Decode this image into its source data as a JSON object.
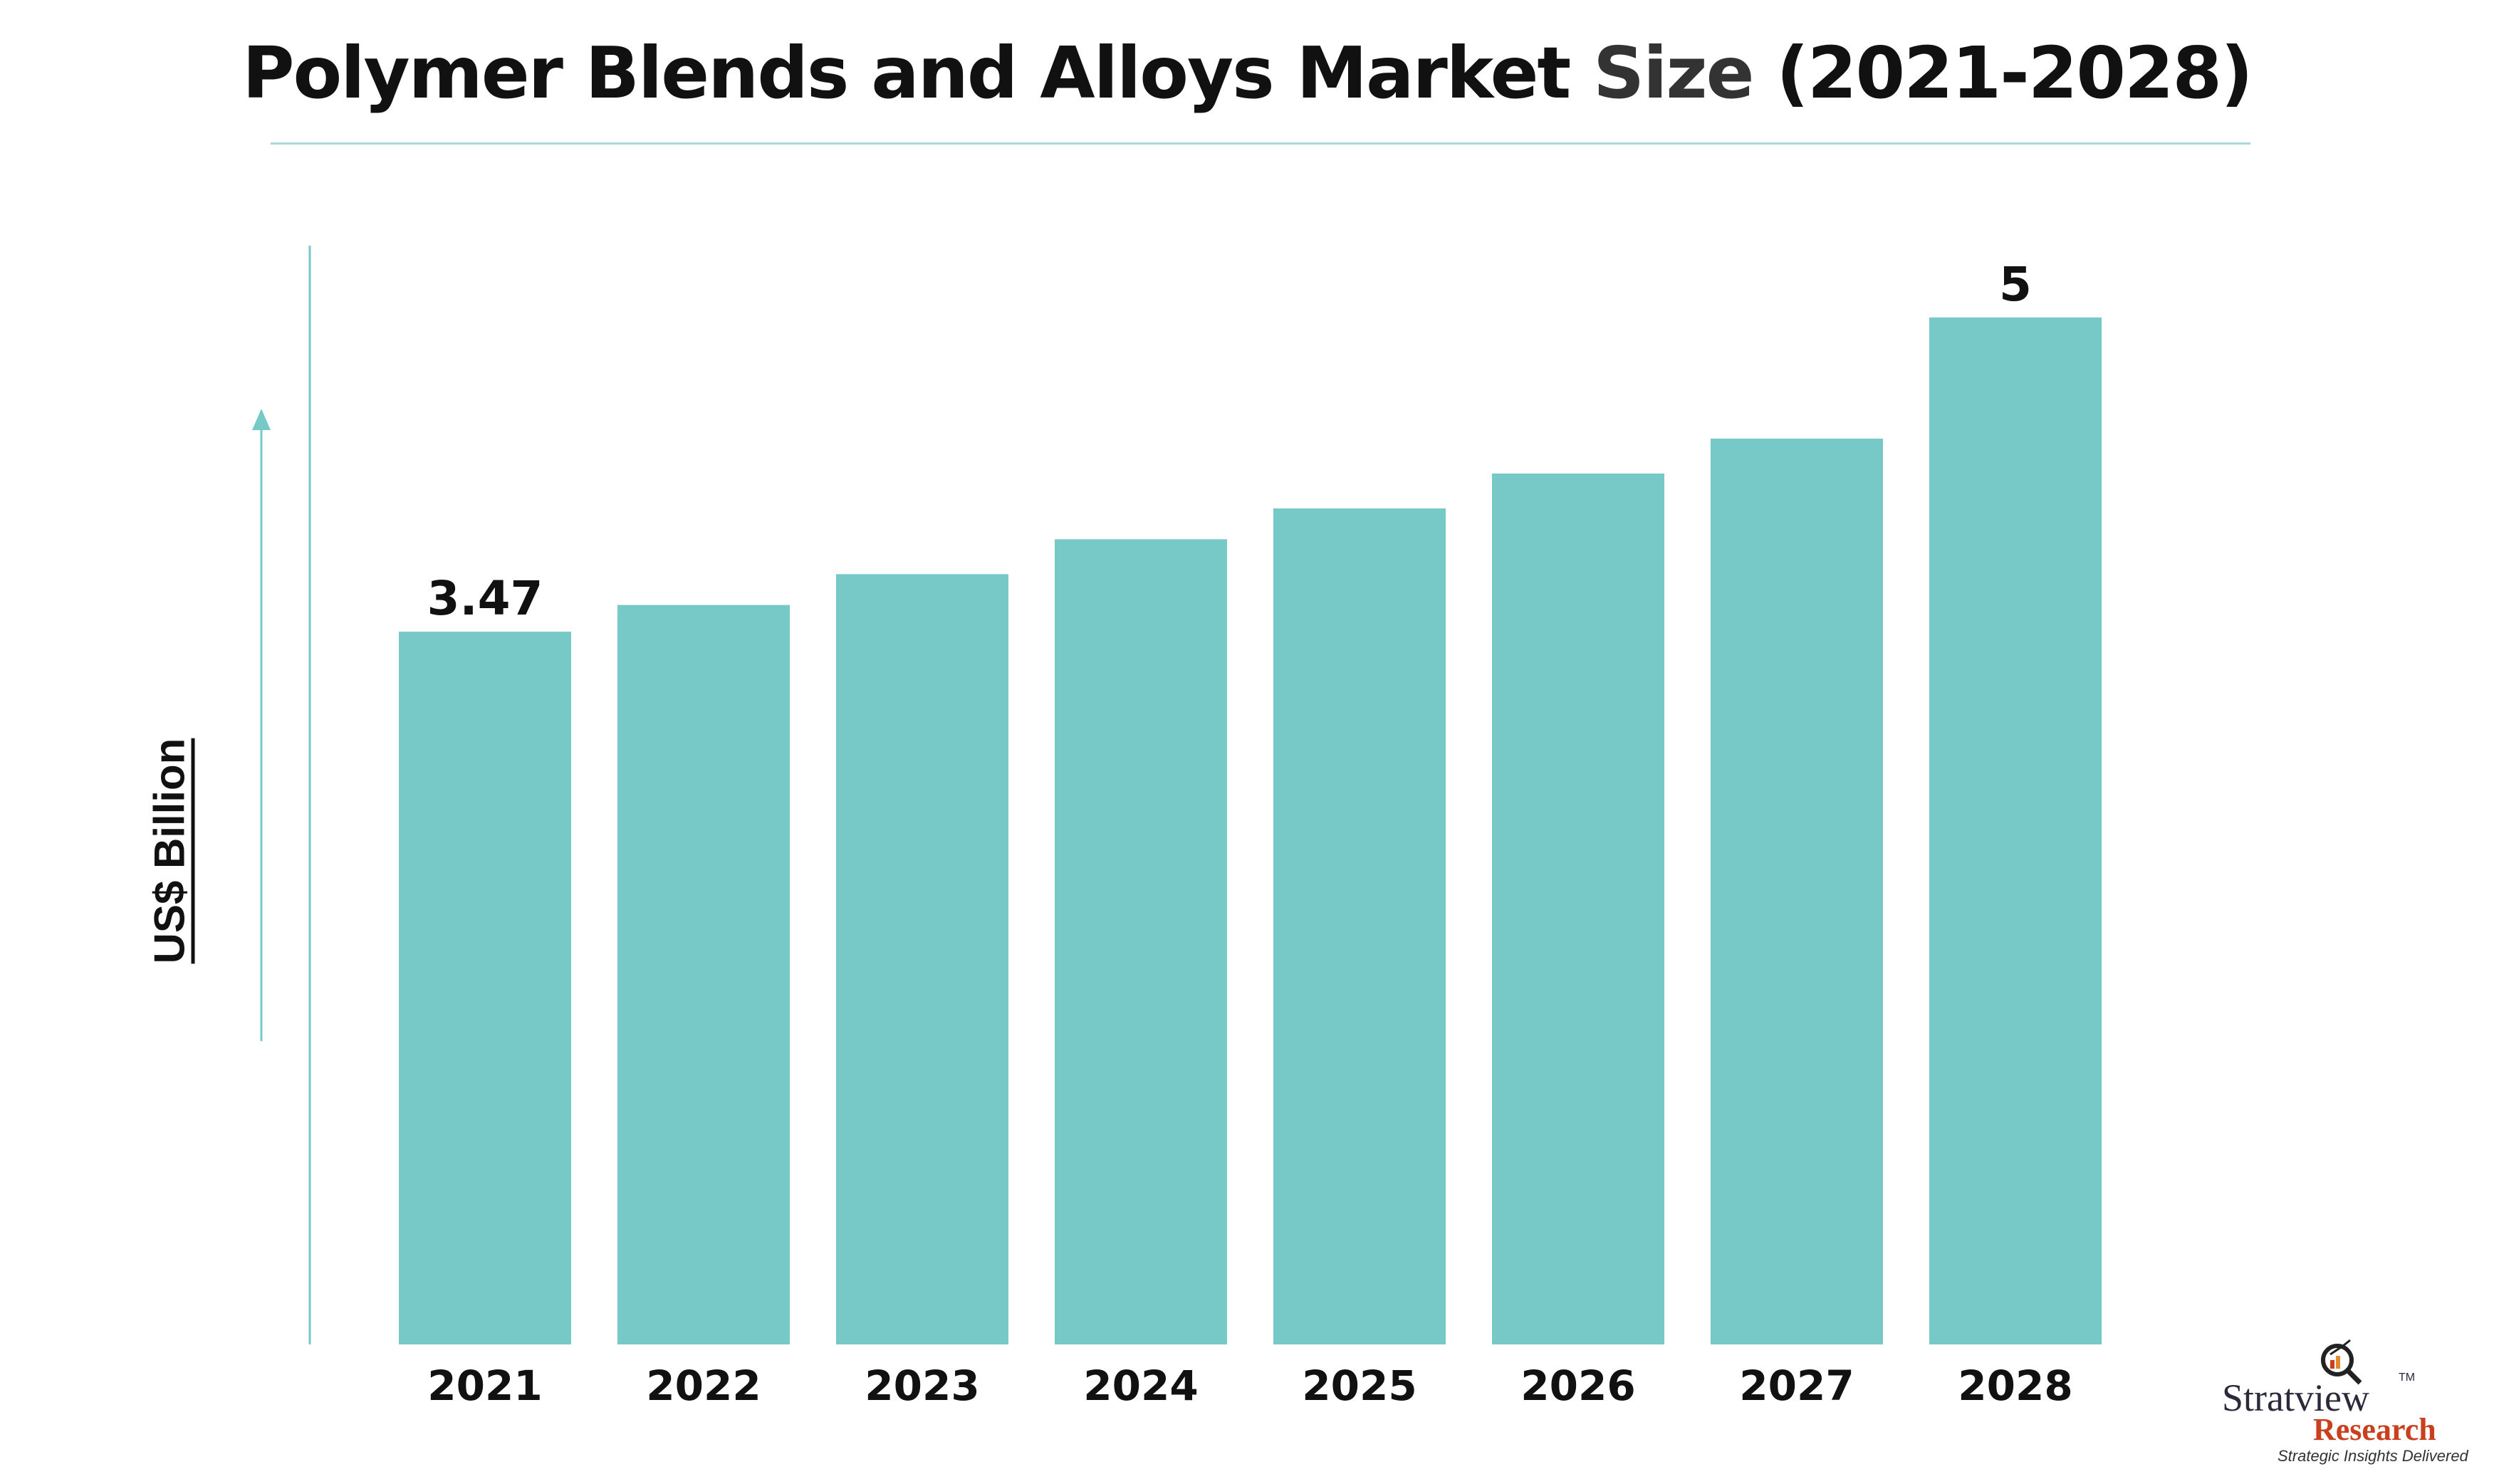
{
  "title": {
    "part1": "Polymer Blends and Alloys Market",
    "part2": "Size",
    "part3": "(2021-2028)"
  },
  "chart_data": {
    "type": "bar",
    "title": "Polymer Blends and Alloys Market Size (2021-2028)",
    "ylabel": "US$ Billion",
    "xlabel": "",
    "categories": [
      "2021",
      "2022",
      "2023",
      "2024",
      "2025",
      "2026",
      "2027",
      "2028"
    ],
    "values": [
      3.47,
      3.6,
      3.75,
      3.92,
      4.07,
      4.24,
      4.41,
      5.0
    ],
    "data_labels": [
      "3.47",
      "",
      "",
      "",
      "",
      "",
      "",
      "5"
    ],
    "ylim": [
      0,
      5.8
    ],
    "grid": false,
    "bar_color": "#77c9c7",
    "axis_color": "#77c9c7"
  },
  "logo": {
    "name": "Stratview",
    "tm": "TM",
    "research": "Research",
    "tagline": "Strategic Insights Delivered"
  }
}
